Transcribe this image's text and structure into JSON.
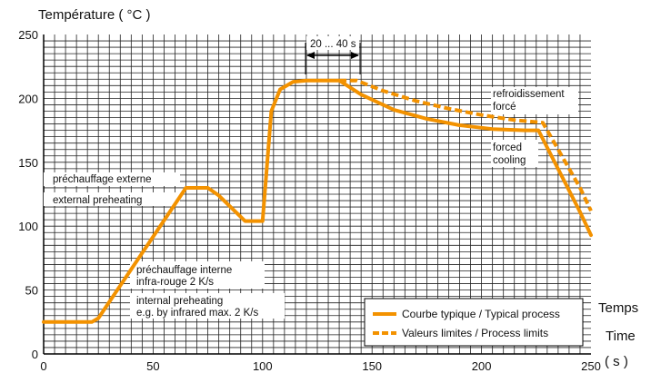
{
  "chart_data": {
    "type": "line",
    "ylabel": "Température ( °C )",
    "xlabel_lines": [
      "Temps",
      "Time",
      "( s )"
    ],
    "xlim": [
      0,
      250
    ],
    "ylim": [
      0,
      250
    ],
    "x_ticks": [
      0,
      50,
      100,
      150,
      200,
      250
    ],
    "y_ticks": [
      0,
      50,
      100,
      150,
      200,
      250
    ],
    "grid": true,
    "legend_position": "bottom-right",
    "colors": {
      "curve": "#f39200",
      "grid": "#222222",
      "axis": "#000000"
    },
    "series": [
      {
        "name": "Courbe typique / Typical process",
        "style": "solid",
        "x": [
          0,
          22,
          25,
          65,
          75,
          80,
          92,
          100,
          104,
          108,
          114,
          120,
          130,
          135,
          145,
          160,
          175,
          190,
          205,
          220,
          226,
          245,
          250
        ],
        "y": [
          25,
          25,
          28,
          130,
          130,
          124,
          104,
          104,
          190,
          207,
          213,
          214,
          214,
          214,
          203,
          191,
          184,
          179,
          176,
          175,
          175,
          111,
          93
        ]
      },
      {
        "name": "Valeurs limites / Process limits",
        "style": "dashed",
        "x": [
          135,
          143,
          155,
          170,
          185,
          200,
          215,
          228,
          245,
          250
        ],
        "y": [
          214,
          214,
          206,
          198,
          192,
          187,
          183,
          181,
          130,
          112
        ]
      }
    ],
    "annotations": {
      "ext_pre_fr": "préchauffage externe",
      "ext_pre_en": "external preheating",
      "int_pre_fr_1": "préchauffage interne",
      "int_pre_fr_2": "infra-rouge 2 K/s",
      "int_pre_en_1": "internal preheating",
      "int_pre_en_2": "e.g. by infrared max. 2 K/s",
      "duration": "20 ... 40 s",
      "cool_fr_1": "refroidissement",
      "cool_fr_2": "forcé",
      "cool_en_1": "forced",
      "cool_en_2": "cooling"
    }
  }
}
